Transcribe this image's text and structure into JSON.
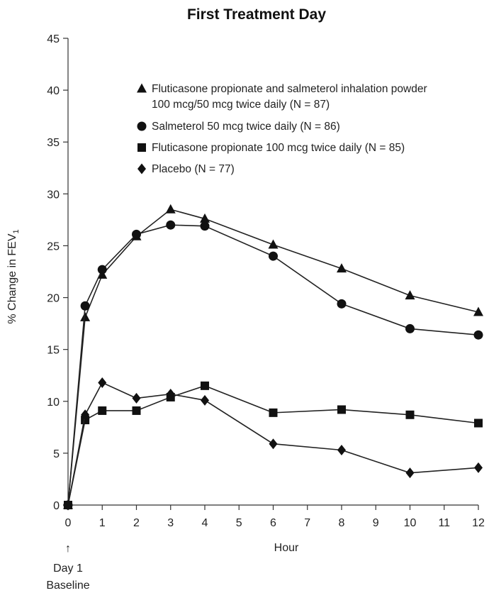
{
  "chart_data": {
    "type": "line",
    "title": "First Treatment Day",
    "xlabel": "Hour",
    "ylabel": "% Change in FEV",
    "ylabel_subscript": "1",
    "x_ticks": [
      0,
      1,
      2,
      3,
      4,
      5,
      6,
      7,
      8,
      9,
      10,
      11,
      12
    ],
    "y_ticks": [
      0,
      5,
      10,
      15,
      20,
      25,
      30,
      35,
      40,
      45
    ],
    "xlim": [
      0,
      12
    ],
    "ylim": [
      0,
      45
    ],
    "baseline_annotation": {
      "arrow": "↑",
      "line1": "Day 1",
      "line2": "Baseline"
    },
    "legend_position": "top-right",
    "grid": false,
    "series": [
      {
        "name": "Fluticasone propionate and salmeterol inhalation powder",
        "name_line2": "100 mcg/50 mcg twice daily (N = 87)",
        "marker": "triangle",
        "x": [
          0,
          0.5,
          1,
          2,
          3,
          4,
          6,
          8,
          10,
          12
        ],
        "y": [
          0,
          18.1,
          22.2,
          25.9,
          28.5,
          27.6,
          25.1,
          22.8,
          20.2,
          18.6
        ]
      },
      {
        "name": "Salmeterol 50 mcg twice daily (N = 86)",
        "marker": "circle",
        "x": [
          0,
          0.5,
          1,
          2,
          3,
          4,
          6,
          8,
          10,
          12
        ],
        "y": [
          0,
          19.2,
          22.7,
          26.1,
          27.0,
          26.9,
          24.0,
          19.4,
          17.0,
          16.4
        ]
      },
      {
        "name": "Fluticasone propionate 100 mcg twice daily (N = 85)",
        "marker": "square",
        "x": [
          0,
          0.5,
          1,
          2,
          3,
          4,
          6,
          8,
          10,
          12
        ],
        "y": [
          0,
          8.2,
          9.1,
          9.1,
          10.4,
          11.5,
          8.9,
          9.2,
          8.7,
          7.9
        ]
      },
      {
        "name": "Placebo (N = 77)",
        "marker": "diamond",
        "x": [
          0,
          0.5,
          1,
          2,
          3,
          4,
          6,
          8,
          10,
          12
        ],
        "y": [
          0,
          8.7,
          11.8,
          10.3,
          10.7,
          10.1,
          5.9,
          5.3,
          3.1,
          3.6
        ]
      }
    ]
  }
}
